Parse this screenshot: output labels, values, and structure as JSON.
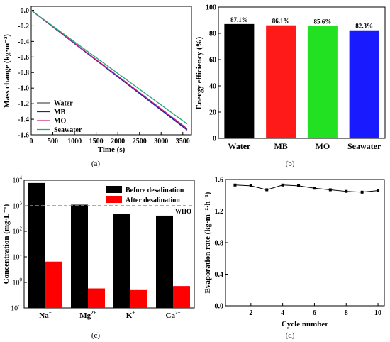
{
  "chart_data": [
    {
      "panel": "(a)",
      "type": "line",
      "xlabel": "Time (s)",
      "ylabel": "Mass change (kg·m⁻²)",
      "xlim": [
        0,
        3700
      ],
      "ylim": [
        -1.6,
        0.05
      ],
      "xticks": [
        "0",
        "500",
        "1000",
        "1500",
        "2000",
        "2500",
        "3000",
        "3500"
      ],
      "yticks": [
        "0.0",
        "-0.2",
        "-0.4",
        "-0.6",
        "-0.8",
        "-1.0",
        "-1.2",
        "-1.4",
        "-1.6"
      ],
      "legend": "bottom-left",
      "series": [
        {
          "name": "Water",
          "color": "#555555",
          "x": [
            0,
            3600
          ],
          "y": [
            0,
            -1.53
          ]
        },
        {
          "name": "MB",
          "color": "#1f1fb4",
          "x": [
            0,
            3600
          ],
          "y": [
            0,
            -1.54
          ]
        },
        {
          "name": "MO",
          "color": "#cc2277",
          "x": [
            0,
            3600
          ],
          "y": [
            0,
            -1.52
          ]
        },
        {
          "name": "Seawater",
          "color": "#22aa77",
          "x": [
            0,
            3600
          ],
          "y": [
            0,
            -1.46
          ]
        }
      ]
    },
    {
      "panel": "(b)",
      "type": "bar",
      "ylabel": "Energy efficiency (%)",
      "ylim": [
        0,
        100
      ],
      "yticks": [
        "0",
        "20",
        "40",
        "60",
        "80",
        "100"
      ],
      "categories": [
        "Water",
        "MB",
        "MO",
        "Seawater"
      ],
      "values": [
        87.1,
        86.1,
        85.6,
        82.3
      ],
      "labels": [
        "87.1%",
        "86.1%",
        "85.6%",
        "82.3%"
      ],
      "colors": [
        "#000000",
        "#ff1a1a",
        "#22e022",
        "#1a1aff"
      ]
    },
    {
      "panel": "(c)",
      "type": "bar",
      "scale": "log",
      "ylabel": "Concentration (mg·L⁻¹)",
      "ylim": [
        0.1,
        10000
      ],
      "ytick_exps": [
        "-1",
        "0",
        "1",
        "2",
        "3",
        "4"
      ],
      "categories": [
        {
          "base": "Na",
          "sup": "+"
        },
        {
          "base": "Mg",
          "sup": "2+"
        },
        {
          "base": "K",
          "sup": "+"
        },
        {
          "base": "Ca",
          "sup": "2+"
        }
      ],
      "legend": "top-right",
      "series": [
        {
          "name": "Before desalination",
          "color": "#000000",
          "values": [
            7800,
            1100,
            480,
            410
          ]
        },
        {
          "name": "After desalination",
          "color": "#ff0000",
          "values": [
            6.5,
            0.58,
            0.5,
            0.72
          ]
        }
      ],
      "reference": {
        "label": "WHO",
        "value": 1000,
        "color": "#22dd22"
      }
    },
    {
      "panel": "(d)",
      "type": "line",
      "xlabel": "Cycle number",
      "ylabel": "Evaporation rate (kg·m⁻²·h⁻¹)",
      "xlim": [
        0.4,
        10.4
      ],
      "ylim": [
        0,
        1.6
      ],
      "xticks": [
        2,
        4,
        6,
        8,
        10
      ],
      "yticks": [
        "0.0",
        "0.4",
        "0.8",
        "1.2",
        "1.6"
      ],
      "x": [
        1,
        2,
        3,
        4,
        5,
        6,
        7,
        8,
        9,
        10
      ],
      "y": [
        1.53,
        1.52,
        1.47,
        1.53,
        1.52,
        1.49,
        1.47,
        1.45,
        1.44,
        1.46
      ]
    }
  ]
}
